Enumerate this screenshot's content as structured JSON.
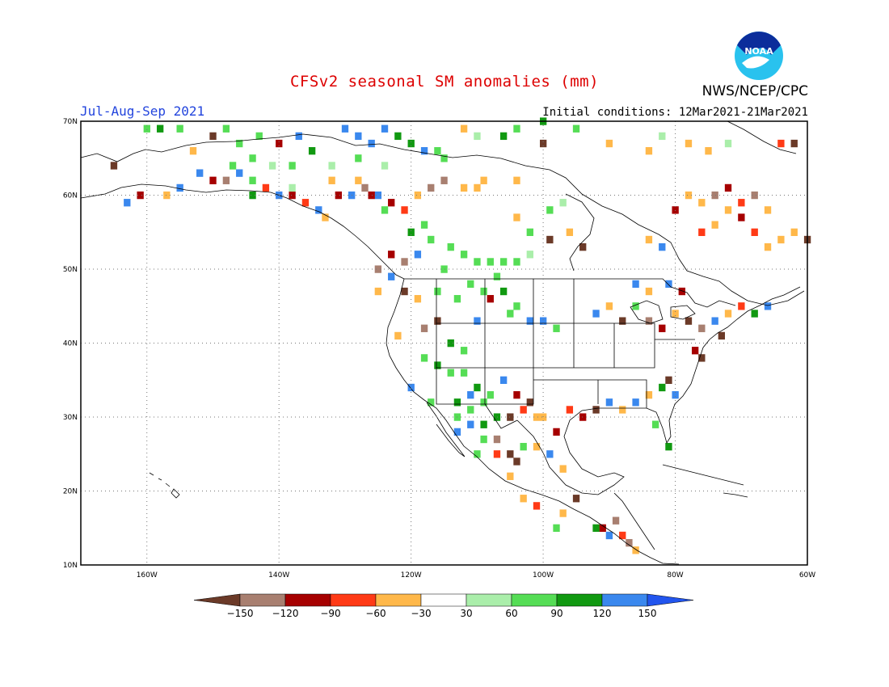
{
  "header": {
    "title": "CFSv2 seasonal SM anomalies (mm)",
    "period": "Jul-Aug-Sep 2021",
    "initial_conditions": "Initial conditions: 12Mar2021-21Mar2021",
    "agency": "NWS/NCEP/CPC",
    "logo_text": "NOAA"
  },
  "map": {
    "lat_labels": [
      "70N",
      "60N",
      "50N",
      "40N",
      "30N",
      "20N",
      "10N"
    ],
    "lat_values": [
      70,
      60,
      50,
      40,
      30,
      20,
      10
    ],
    "lon_labels": [
      "160W",
      "140W",
      "120W",
      "100W",
      "80W",
      "60W"
    ],
    "lon_values": [
      -160,
      -140,
      -120,
      -100,
      -80,
      -60
    ],
    "lon_range": [
      -170,
      -60
    ],
    "lat_range": [
      10,
      70
    ]
  },
  "colorbar": {
    "labels": [
      "-150",
      "-120",
      "-90",
      "-60",
      "-30",
      "30",
      "60",
      "90",
      "120",
      "150"
    ],
    "colors": [
      "#6b3a28",
      "#a87f70",
      "#a60000",
      "#ff3a16",
      "#ffb84a",
      "#ffffff",
      "#aaeeaa",
      "#55dd55",
      "#119911",
      "#3a88ee",
      "#2255ee"
    ]
  },
  "cells": [
    {
      "lon": -165,
      "lat": 64,
      "v": -150
    },
    {
      "lon": -163,
      "lat": 59,
      "v": 130
    },
    {
      "lon": -161,
      "lat": 60,
      "v": -100
    },
    {
      "lon": -157,
      "lat": 60,
      "v": -50
    },
    {
      "lon": -155,
      "lat": 61,
      "v": 130
    },
    {
      "lon": -152,
      "lat": 63,
      "v": 120
    },
    {
      "lon": -150,
      "lat": 62,
      "v": -100
    },
    {
      "lon": -148,
      "lat": 62,
      "v": -130
    },
    {
      "lon": -146,
      "lat": 63,
      "v": 130
    },
    {
      "lon": -144,
      "lat": 62,
      "v": 70
    },
    {
      "lon": -142,
      "lat": 61,
      "v": -60
    },
    {
      "lon": -140,
      "lat": 60,
      "v": 140
    },
    {
      "lon": -138,
      "lat": 60,
      "v": -100
    },
    {
      "lon": -136,
      "lat": 59,
      "v": -80
    },
    {
      "lon": -134,
      "lat": 58,
      "v": 130
    },
    {
      "lon": -133,
      "lat": 57,
      "v": -50
    },
    {
      "lon": -131,
      "lat": 60,
      "v": -100
    },
    {
      "lon": -129,
      "lat": 60,
      "v": 120
    },
    {
      "lon": -127,
      "lat": 61,
      "v": -130
    },
    {
      "lon": -125,
      "lat": 60,
      "v": 130
    },
    {
      "lon": -123,
      "lat": 59,
      "v": -100
    },
    {
      "lon": -121,
      "lat": 58,
      "v": -70
    },
    {
      "lon": -119,
      "lat": 60,
      "v": -50
    },
    {
      "lon": -117,
      "lat": 61,
      "v": -130
    },
    {
      "lon": -115,
      "lat": 62,
      "v": -140
    },
    {
      "lon": -112,
      "lat": 61,
      "v": -50
    },
    {
      "lon": -110,
      "lat": 61,
      "v": -50
    },
    {
      "lon": -109,
      "lat": 62,
      "v": -40
    },
    {
      "lon": -118,
      "lat": 56,
      "v": 70
    },
    {
      "lon": -117,
      "lat": 54,
      "v": 60
    },
    {
      "lon": -114,
      "lat": 53,
      "v": 70
    },
    {
      "lon": -112,
      "lat": 52,
      "v": 80
    },
    {
      "lon": -110,
      "lat": 51,
      "v": 70
    },
    {
      "lon": -108,
      "lat": 51,
      "v": 60
    },
    {
      "lon": -106,
      "lat": 51,
      "v": 80
    },
    {
      "lon": -104,
      "lat": 51,
      "v": 60
    },
    {
      "lon": -102,
      "lat": 52,
      "v": 50
    },
    {
      "lon": -115,
      "lat": 50,
      "v": 60
    },
    {
      "lon": -119,
      "lat": 52,
      "v": 130
    },
    {
      "lon": -121,
      "lat": 51,
      "v": -140
    },
    {
      "lon": -123,
      "lat": 52,
      "v": -100
    },
    {
      "lon": -125,
      "lat": 50,
      "v": -120
    },
    {
      "lon": -123,
      "lat": 49,
      "v": 130
    },
    {
      "lon": -125,
      "lat": 47,
      "v": -50
    },
    {
      "lon": -121,
      "lat": 47,
      "v": -150
    },
    {
      "lon": -119,
      "lat": 46,
      "v": -50
    },
    {
      "lon": -122,
      "lat": 41,
      "v": -50
    },
    {
      "lon": -118,
      "lat": 42,
      "v": -120
    },
    {
      "lon": -116,
      "lat": 43,
      "v": -150
    },
    {
      "lon": -114,
      "lat": 40,
      "v": 100
    },
    {
      "lon": -112,
      "lat": 39,
      "v": 60
    },
    {
      "lon": -110,
      "lat": 43,
      "v": 130
    },
    {
      "lon": -108,
      "lat": 46,
      "v": -100
    },
    {
      "lon": -106,
      "lat": 47,
      "v": 100
    },
    {
      "lon": -104,
      "lat": 45,
      "v": 60
    },
    {
      "lon": -102,
      "lat": 43,
      "v": 120
    },
    {
      "lon": -100,
      "lat": 43,
      "v": 130
    },
    {
      "lon": -98,
      "lat": 42,
      "v": 60
    },
    {
      "lon": -112,
      "lat": 36,
      "v": 80
    },
    {
      "lon": -110,
      "lat": 34,
      "v": 100
    },
    {
      "lon": -108,
      "lat": 33,
      "v": 60
    },
    {
      "lon": -106,
      "lat": 35,
      "v": 120
    },
    {
      "lon": -104,
      "lat": 33,
      "v": -100
    },
    {
      "lon": -102,
      "lat": 32,
      "v": -150
    },
    {
      "lon": -100,
      "lat": 30,
      "v": -50
    },
    {
      "lon": -98,
      "lat": 28,
      "v": -100
    },
    {
      "lon": -96,
      "lat": 31,
      "v": -60
    },
    {
      "lon": -94,
      "lat": 30,
      "v": -100
    },
    {
      "lon": -92,
      "lat": 31,
      "v": -150
    },
    {
      "lon": -90,
      "lat": 32,
      "v": 130
    },
    {
      "lon": -88,
      "lat": 31,
      "v": -50
    },
    {
      "lon": -86,
      "lat": 32,
      "v": 130
    },
    {
      "lon": -84,
      "lat": 33,
      "v": -50
    },
    {
      "lon": -82,
      "lat": 34,
      "v": 100
    },
    {
      "lon": -81,
      "lat": 35,
      "v": -150
    },
    {
      "lon": -80,
      "lat": 33,
      "v": 120
    },
    {
      "lon": -83,
      "lat": 29,
      "v": 60
    },
    {
      "lon": -81,
      "lat": 26,
      "v": 100
    },
    {
      "lon": -107,
      "lat": 27,
      "v": -140
    },
    {
      "lon": -105,
      "lat": 25,
      "v": -150
    },
    {
      "lon": -103,
      "lat": 26,
      "v": 80
    },
    {
      "lon": -101,
      "lat": 26,
      "v": -50
    },
    {
      "lon": -99,
      "lat": 25,
      "v": 120
    },
    {
      "lon": -97,
      "lat": 23,
      "v": -50
    },
    {
      "lon": -109,
      "lat": 29,
      "v": 100
    },
    {
      "lon": -111,
      "lat": 31,
      "v": 60
    },
    {
      "lon": -113,
      "lat": 28,
      "v": 130
    },
    {
      "lon": -110,
      "lat": 25,
      "v": 80
    },
    {
      "lon": -105,
      "lat": 22,
      "v": -50
    },
    {
      "lon": -103,
      "lat": 19,
      "v": -40
    },
    {
      "lon": -101,
      "lat": 18,
      "v": -60
    },
    {
      "lon": -97,
      "lat": 17,
      "v": -50
    },
    {
      "lon": -95,
      "lat": 19,
      "v": -150
    },
    {
      "lon": -91,
      "lat": 15,
      "v": -100
    },
    {
      "lon": -89,
      "lat": 16,
      "v": -140
    },
    {
      "lon": -88,
      "lat": 14,
      "v": -80
    },
    {
      "lon": -87,
      "lat": 13,
      "v": -120
    },
    {
      "lon": -86,
      "lat": 12,
      "v": -50
    },
    {
      "lon": -90,
      "lat": 14,
      "v": 120
    },
    {
      "lon": -92,
      "lat": 15,
      "v": 90
    },
    {
      "lon": -98,
      "lat": 15,
      "v": 80
    },
    {
      "lon": -92,
      "lat": 44,
      "v": 130
    },
    {
      "lon": -90,
      "lat": 45,
      "v": -50
    },
    {
      "lon": -88,
      "lat": 43,
      "v": -150
    },
    {
      "lon": -86,
      "lat": 45,
      "v": 80
    },
    {
      "lon": -84,
      "lat": 43,
      "v": -120
    },
    {
      "lon": -82,
      "lat": 42,
      "v": -100
    },
    {
      "lon": -80,
      "lat": 44,
      "v": -50
    },
    {
      "lon": -78,
      "lat": 43,
      "v": -150
    },
    {
      "lon": -76,
      "lat": 42,
      "v": -140
    },
    {
      "lon": -74,
      "lat": 43,
      "v": 130
    },
    {
      "lon": -73,
      "lat": 41,
      "v": -150
    },
    {
      "lon": -72,
      "lat": 44,
      "v": -50
    },
    {
      "lon": -70,
      "lat": 45,
      "v": -60
    },
    {
      "lon": -68,
      "lat": 44,
      "v": 100
    },
    {
      "lon": -66,
      "lat": 45,
      "v": 130
    },
    {
      "lon": -77,
      "lat": 39,
      "v": -100
    },
    {
      "lon": -76,
      "lat": 38,
      "v": -150
    },
    {
      "lon": -79,
      "lat": 47,
      "v": -100
    },
    {
      "lon": -81,
      "lat": 48,
      "v": 130
    },
    {
      "lon": -84,
      "lat": 47,
      "v": -50
    },
    {
      "lon": -86,
      "lat": 48,
      "v": 130
    },
    {
      "lon": -76,
      "lat": 55,
      "v": -60
    },
    {
      "lon": -74,
      "lat": 56,
      "v": -50
    },
    {
      "lon": -72,
      "lat": 58,
      "v": -50
    },
    {
      "lon": -70,
      "lat": 57,
      "v": -100
    },
    {
      "lon": -68,
      "lat": 55,
      "v": -60
    },
    {
      "lon": -66,
      "lat": 53,
      "v": -50
    },
    {
      "lon": -64,
      "lat": 54,
      "v": -40
    },
    {
      "lon": -62,
      "lat": 55,
      "v": -50
    },
    {
      "lon": -60,
      "lat": 54,
      "v": -150
    },
    {
      "lon": -74,
      "lat": 60,
      "v": -120
    },
    {
      "lon": -72,
      "lat": 61,
      "v": -100
    },
    {
      "lon": -70,
      "lat": 59,
      "v": -80
    },
    {
      "lon": -68,
      "lat": 60,
      "v": -120
    },
    {
      "lon": -66,
      "lat": 58,
      "v": -50
    },
    {
      "lon": -76,
      "lat": 59,
      "v": -50
    },
    {
      "lon": -78,
      "lat": 60,
      "v": -50
    },
    {
      "lon": -80,
      "lat": 58,
      "v": -100
    },
    {
      "lon": -82,
      "lat": 53,
      "v": 130
    },
    {
      "lon": -84,
      "lat": 54,
      "v": -50
    },
    {
      "lon": -94,
      "lat": 53,
      "v": -150
    },
    {
      "lon": -96,
      "lat": 55,
      "v": -40
    },
    {
      "lon": -99,
      "lat": 54,
      "v": -150
    },
    {
      "lon": -102,
      "lat": 55,
      "v": 60
    },
    {
      "lon": -104,
      "lat": 57,
      "v": -40
    },
    {
      "lon": -99,
      "lat": 58,
      "v": 60
    },
    {
      "lon": -97,
      "lat": 59,
      "v": 50
    },
    {
      "lon": -104,
      "lat": 62,
      "v": -50
    },
    {
      "lon": -100,
      "lat": 67,
      "v": -150
    },
    {
      "lon": -90,
      "lat": 67,
      "v": -50
    },
    {
      "lon": -84,
      "lat": 66,
      "v": -50
    },
    {
      "lon": -82,
      "lat": 68,
      "v": 50
    },
    {
      "lon": -78,
      "lat": 67,
      "v": -40
    },
    {
      "lon": -75,
      "lat": 66,
      "v": -50
    },
    {
      "lon": -72,
      "lat": 67,
      "v": 50
    },
    {
      "lon": -62,
      "lat": 67,
      "v": -150
    },
    {
      "lon": -64,
      "lat": 67,
      "v": -60
    },
    {
      "lon": -130,
      "lat": 69,
      "v": 130
    },
    {
      "lon": -128,
      "lat": 68,
      "v": 140
    },
    {
      "lon": -126,
      "lat": 67,
      "v": 120
    },
    {
      "lon": -124,
      "lat": 69,
      "v": 140
    },
    {
      "lon": -122,
      "lat": 68,
      "v": 100
    },
    {
      "lon": -120,
      "lat": 67,
      "v": 100
    },
    {
      "lon": -118,
      "lat": 66,
      "v": 120
    },
    {
      "lon": -135,
      "lat": 66,
      "v": 100
    },
    {
      "lon": -137,
      "lat": 68,
      "v": 130
    },
    {
      "lon": -140,
      "lat": 67,
      "v": -100
    },
    {
      "lon": -143,
      "lat": 68,
      "v": 60
    },
    {
      "lon": -146,
      "lat": 67,
      "v": 60
    },
    {
      "lon": -150,
      "lat": 68,
      "v": -150
    },
    {
      "lon": -153,
      "lat": 66,
      "v": -50
    },
    {
      "lon": -155,
      "lat": 69,
      "v": 80
    },
    {
      "lon": -158,
      "lat": 69,
      "v": 100
    },
    {
      "lon": -160,
      "lat": 69,
      "v": 80
    },
    {
      "lon": -148,
      "lat": 69,
      "v": 60
    },
    {
      "lon": -112,
      "lat": 69,
      "v": -50
    },
    {
      "lon": -110,
      "lat": 68,
      "v": 50
    },
    {
      "lon": -106,
      "lat": 68,
      "v": 100
    },
    {
      "lon": -104,
      "lat": 69,
      "v": 60
    },
    {
      "lon": -100,
      "lat": 70,
      "v": 100
    },
    {
      "lon": -95,
      "lat": 69,
      "v": 60
    },
    {
      "lon": -116,
      "lat": 66,
      "v": 60
    },
    {
      "lon": -115,
      "lat": 65,
      "v": 60
    },
    {
      "lon": -138,
      "lat": 64,
      "v": 60
    },
    {
      "lon": -141,
      "lat": 64,
      "v": 50
    },
    {
      "lon": -144,
      "lat": 65,
      "v": 70
    },
    {
      "lon": -147,
      "lat": 64,
      "v": 60
    },
    {
      "lon": -132,
      "lat": 64,
      "v": 50
    },
    {
      "lon": -128,
      "lat": 65,
      "v": 60
    },
    {
      "lon": -124,
      "lat": 64,
      "v": 50
    },
    {
      "lon": -144,
      "lat": 60,
      "v": 90
    },
    {
      "lon": -138,
      "lat": 61,
      "v": 50
    },
    {
      "lon": -132,
      "lat": 62,
      "v": -50
    },
    {
      "lon": -128,
      "lat": 62,
      "v": -50
    },
    {
      "lon": -126,
      "lat": 60,
      "v": -100
    },
    {
      "lon": -124,
      "lat": 58,
      "v": 60
    },
    {
      "lon": -120,
      "lat": 55,
      "v": 100
    },
    {
      "lon": -116,
      "lat": 47,
      "v": 80
    },
    {
      "lon": -113,
      "lat": 46,
      "v": 80
    },
    {
      "lon": -111,
      "lat": 48,
      "v": 60
    },
    {
      "lon": -109,
      "lat": 47,
      "v": 60
    },
    {
      "lon": -107,
      "lat": 49,
      "v": 60
    },
    {
      "lon": -105,
      "lat": 44,
      "v": 60
    },
    {
      "lon": -118,
      "lat": 38,
      "v": 60
    },
    {
      "lon": -116,
      "lat": 37,
      "v": 100
    },
    {
      "lon": -114,
      "lat": 36,
      "v": 60
    },
    {
      "lon": -120,
      "lat": 34,
      "v": 120
    },
    {
      "lon": -117,
      "lat": 32,
      "v": 60
    },
    {
      "lon": -113,
      "lat": 32,
      "v": 100
    },
    {
      "lon": -111,
      "lat": 33,
      "v": 120
    },
    {
      "lon": -109,
      "lat": 32,
      "v": 80
    },
    {
      "lon": -107,
      "lat": 30,
      "v": 100
    },
    {
      "lon": -105,
      "lat": 30,
      "v": -150
    },
    {
      "lon": -103,
      "lat": 31,
      "v": -60
    },
    {
      "lon": -101,
      "lat": 30,
      "v": -40
    },
    {
      "lon": -111,
      "lat": 29,
      "v": 130
    },
    {
      "lon": -113,
      "lat": 30,
      "v": 80
    },
    {
      "lon": -109,
      "lat": 27,
      "v": 60
    },
    {
      "lon": -107,
      "lat": 25,
      "v": -60
    },
    {
      "lon": -104,
      "lat": 24,
      "v": -150
    }
  ]
}
